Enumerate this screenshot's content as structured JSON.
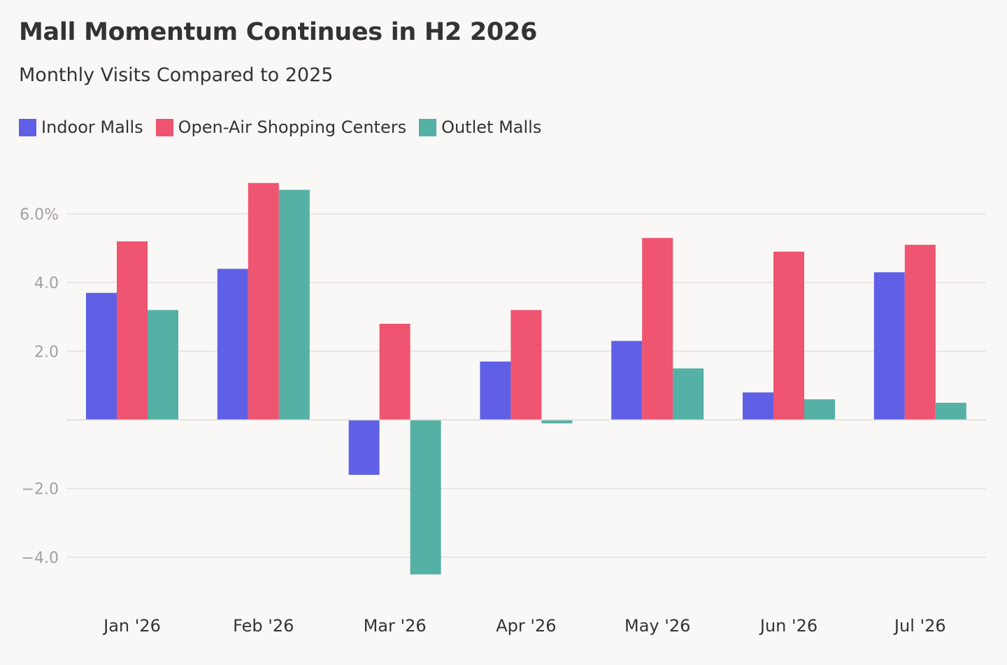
{
  "title": "Mall Momentum Continues in H2 2026",
  "subtitle": "Monthly Visits Compared to 2025",
  "legend": [
    {
      "label": "Indoor Malls",
      "color": "#5f60e6"
    },
    {
      "label": "Open-Air Shopping Centers",
      "color": "#ef5470"
    },
    {
      "label": "Outlet Malls",
      "color": "#55b0a6"
    }
  ],
  "chart_data": {
    "type": "bar",
    "title": "Mall Momentum Continues in H2 2026",
    "subtitle": "Monthly Visits Compared to 2025",
    "categories": [
      "Jan '26",
      "Feb '26",
      "Mar '26",
      "Apr '26",
      "May '26",
      "Jun '26",
      "Jul '26"
    ],
    "series": [
      {
        "name": "Indoor Malls",
        "color": "#5f60e6",
        "values": [
          3.7,
          4.4,
          -1.6,
          1.7,
          2.3,
          0.8,
          4.3
        ]
      },
      {
        "name": "Open-Air Shopping Centers",
        "color": "#ef5470",
        "values": [
          5.2,
          6.9,
          2.8,
          3.2,
          5.3,
          4.9,
          5.1
        ]
      },
      {
        "name": "Outlet Malls",
        "color": "#55b0a6",
        "values": [
          3.2,
          6.7,
          -4.5,
          -0.1,
          1.5,
          0.6,
          0.5
        ]
      }
    ],
    "ylim": [
      -5.0,
      7.3
    ],
    "yticks": [
      {
        "value": 6,
        "label": "6.0%"
      },
      {
        "value": 4,
        "label": "4.0"
      },
      {
        "value": 2,
        "label": "2.0"
      },
      {
        "value": -2,
        "label": "−2.0"
      },
      {
        "value": -4,
        "label": "−4.0"
      }
    ],
    "xlabel": "",
    "ylabel": "",
    "grid": true,
    "legend_position": "top-left"
  }
}
